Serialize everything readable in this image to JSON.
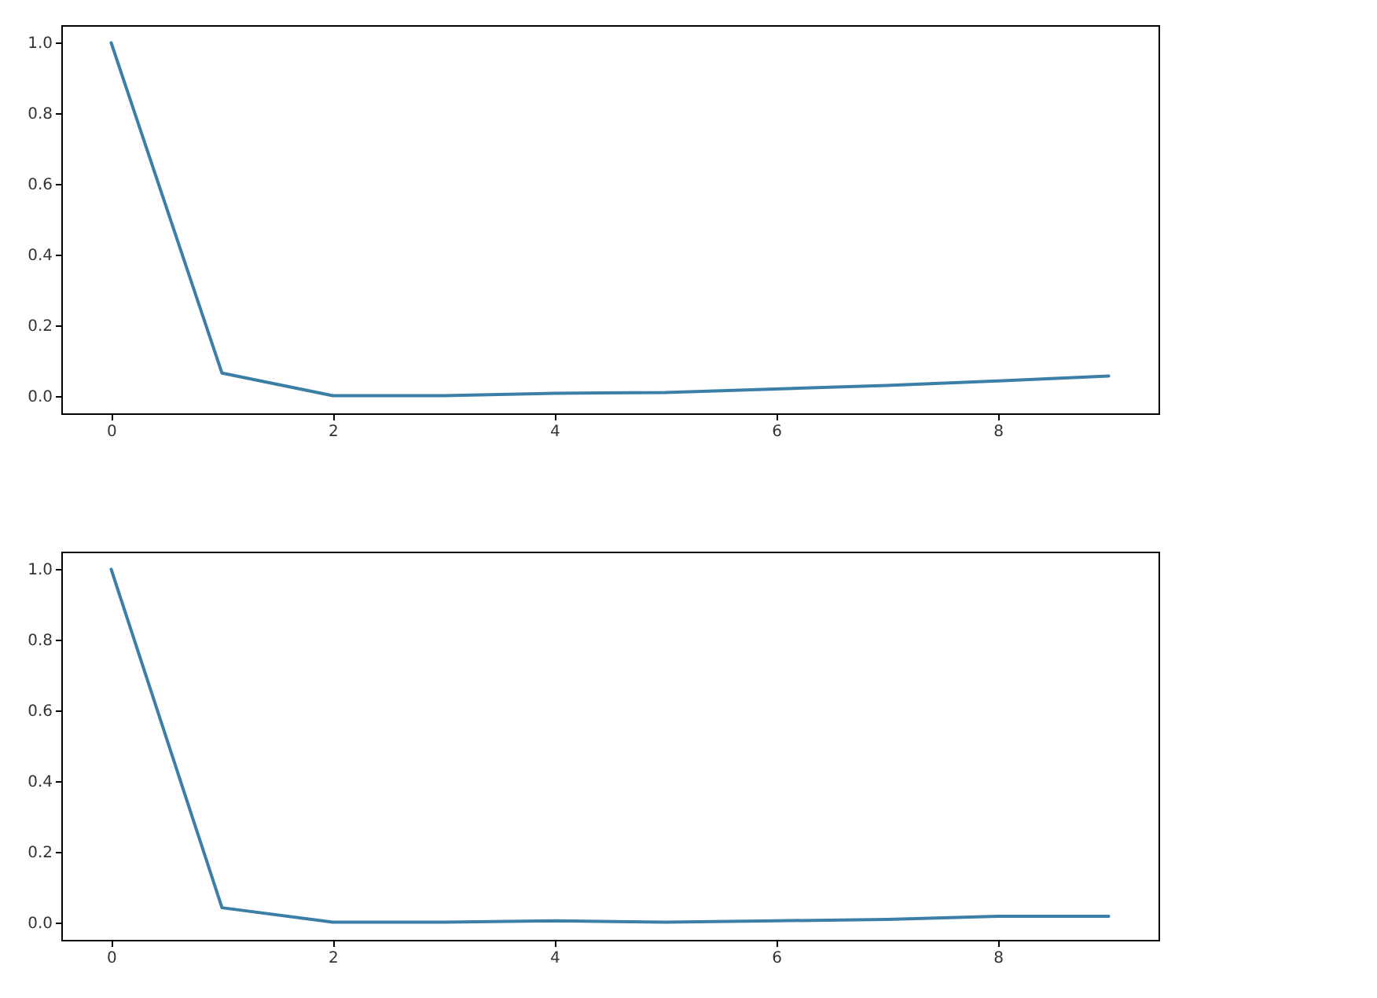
{
  "chart_data": [
    {
      "type": "line",
      "x": [
        0,
        1,
        2,
        3,
        4,
        5,
        6,
        7,
        8,
        9
      ],
      "values": [
        1.0,
        0.064,
        0.0,
        0.0,
        0.007,
        0.009,
        0.019,
        0.029,
        0.042,
        0.056
      ],
      "color": "#3b7ea6",
      "xlim": [
        -0.45,
        9.45
      ],
      "ylim": [
        -0.05,
        1.05
      ],
      "xticks": [
        0,
        2,
        4,
        6,
        8
      ],
      "yticks": [
        {
          "value": 0,
          "label": "0.0"
        },
        {
          "value": 0.2,
          "label": "0.2"
        },
        {
          "value": 0.4,
          "label": "0.4"
        },
        {
          "value": 0.6,
          "label": "0.6"
        },
        {
          "value": 0.8,
          "label": "0.8"
        },
        {
          "value": 1,
          "label": "1.0"
        }
      ],
      "grid": false
    },
    {
      "type": "line",
      "x": [
        0,
        1,
        2,
        3,
        4,
        5,
        6,
        7,
        8,
        9
      ],
      "values": [
        1.0,
        0.041,
        0.0,
        0.0,
        0.004,
        0.0,
        0.004,
        0.008,
        0.017,
        0.017
      ],
      "color": "#3b7ea6",
      "xlim": [
        -0.45,
        9.45
      ],
      "ylim": [
        -0.05,
        1.05
      ],
      "xticks": [
        0,
        2,
        4,
        6,
        8
      ],
      "yticks": [
        {
          "value": 0,
          "label": "0.0"
        },
        {
          "value": 0.2,
          "label": "0.2"
        },
        {
          "value": 0.4,
          "label": "0.4"
        },
        {
          "value": 0.6,
          "label": "0.6"
        },
        {
          "value": 0.8,
          "label": "0.8"
        },
        {
          "value": 1,
          "label": "1.0"
        }
      ],
      "grid": false
    }
  ]
}
